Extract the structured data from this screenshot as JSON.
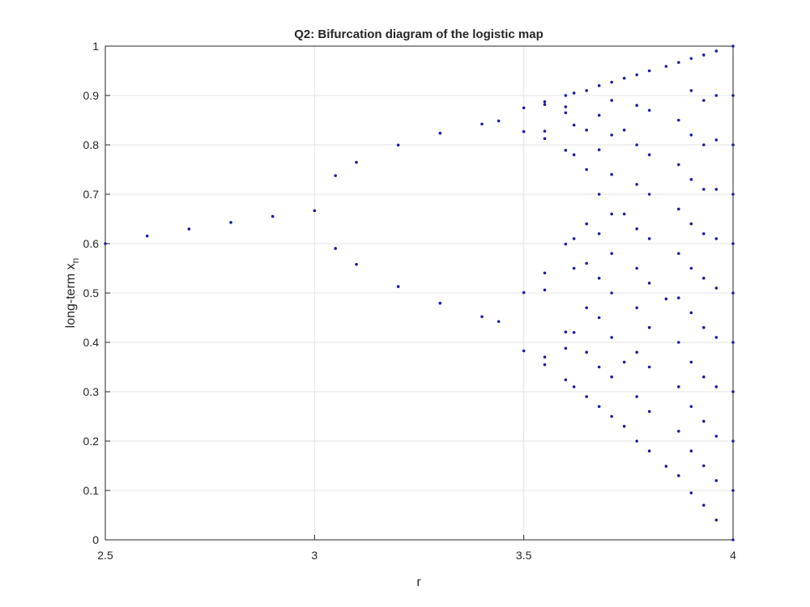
{
  "chart_data": {
    "type": "scatter",
    "title": "Q2: Bifurcation diagram of the logistic map",
    "xlabel": "r",
    "ylabel": "long-term x",
    "ylabel_subscript": "n",
    "color": "#1c1ca6",
    "grid": true,
    "xlim": [
      2.5,
      4
    ],
    "ylim": [
      0,
      1
    ],
    "xticks": [
      2.5,
      3,
      3.5,
      4
    ],
    "yticks": [
      0,
      0.1,
      0.2,
      0.3,
      0.4,
      0.5,
      0.6,
      0.7,
      0.8,
      0.9,
      1
    ],
    "x": [
      2.5,
      2.6,
      2.7,
      2.8,
      2.9,
      3.0,
      3.05,
      3.05,
      3.1,
      3.1,
      3.2,
      3.2,
      3.3,
      3.3,
      3.4,
      3.4,
      3.44,
      3.44,
      3.5,
      3.5,
      3.5,
      3.5,
      3.55,
      3.55,
      3.55,
      3.55,
      3.55,
      3.55,
      3.55,
      3.55,
      3.6,
      3.6,
      3.6,
      3.6,
      3.6,
      3.6,
      3.6,
      3.6,
      3.62,
      3.62,
      3.62,
      3.62,
      3.62,
      3.62,
      3.62,
      3.65,
      3.65,
      3.65,
      3.65,
      3.65,
      3.65,
      3.65,
      3.65,
      3.68,
      3.68,
      3.68,
      3.68,
      3.68,
      3.68,
      3.68,
      3.68,
      3.68,
      3.71,
      3.71,
      3.71,
      3.71,
      3.71,
      3.71,
      3.71,
      3.71,
      3.71,
      3.71,
      3.74,
      3.74,
      3.74,
      3.74,
      3.74,
      3.77,
      3.77,
      3.77,
      3.77,
      3.77,
      3.77,
      3.77,
      3.77,
      3.77,
      3.77,
      3.8,
      3.8,
      3.8,
      3.8,
      3.8,
      3.8,
      3.8,
      3.8,
      3.8,
      3.8,
      3.84,
      3.84,
      3.84,
      3.87,
      3.87,
      3.87,
      3.87,
      3.87,
      3.87,
      3.87,
      3.87,
      3.87,
      3.87,
      3.9,
      3.9,
      3.9,
      3.9,
      3.9,
      3.9,
      3.9,
      3.9,
      3.9,
      3.9,
      3.9,
      3.93,
      3.93,
      3.93,
      3.93,
      3.93,
      3.93,
      3.93,
      3.93,
      3.93,
      3.93,
      3.93,
      3.96,
      3.96,
      3.96,
      3.96,
      3.96,
      3.96,
      3.96,
      3.96,
      3.96,
      3.96,
      3.96,
      4,
      4,
      4,
      4,
      4,
      4,
      4,
      4,
      4,
      4,
      4
    ],
    "y": [
      0.6,
      0.6154,
      0.6296,
      0.6429,
      0.6552,
      0.6667,
      0.7377,
      0.5902,
      0.7646,
      0.558,
      0.7995,
      0.513,
      0.8236,
      0.4794,
      0.8422,
      0.452,
      0.8485,
      0.4422,
      0.3828,
      0.8269,
      0.5009,
      0.875,
      0.3548,
      0.8127,
      0.5405,
      0.8817,
      0.3703,
      0.8278,
      0.506,
      0.8874,
      0.324,
      0.789,
      0.599,
      0.865,
      0.421,
      0.877,
      0.388,
      0.9,
      0.31,
      0.42,
      0.55,
      0.61,
      0.78,
      0.84,
      0.905,
      0.29,
      0.38,
      0.47,
      0.56,
      0.64,
      0.75,
      0.83,
      0.91,
      0.27,
      0.35,
      0.45,
      0.53,
      0.62,
      0.7,
      0.79,
      0.86,
      0.92,
      0.25,
      0.33,
      0.41,
      0.5,
      0.58,
      0.66,
      0.74,
      0.82,
      0.89,
      0.927,
      0.23,
      0.36,
      0.66,
      0.83,
      0.935,
      0.2,
      0.29,
      0.38,
      0.47,
      0.55,
      0.63,
      0.72,
      0.8,
      0.88,
      0.942,
      0.18,
      0.26,
      0.35,
      0.43,
      0.52,
      0.61,
      0.7,
      0.78,
      0.87,
      0.95,
      0.149,
      0.488,
      0.959,
      0.13,
      0.22,
      0.31,
      0.4,
      0.49,
      0.58,
      0.67,
      0.76,
      0.85,
      0.967,
      0.095,
      0.18,
      0.27,
      0.36,
      0.46,
      0.55,
      0.64,
      0.73,
      0.82,
      0.91,
      0.975,
      0.07,
      0.15,
      0.24,
      0.33,
      0.43,
      0.53,
      0.62,
      0.71,
      0.8,
      0.89,
      0.982,
      0.04,
      0.12,
      0.21,
      0.31,
      0.41,
      0.51,
      0.61,
      0.71,
      0.81,
      0.9,
      0.99,
      0,
      0.1,
      0.2,
      0.3,
      0.4,
      0.5,
      0.6,
      0.7,
      0.8,
      0.9,
      1
    ]
  }
}
